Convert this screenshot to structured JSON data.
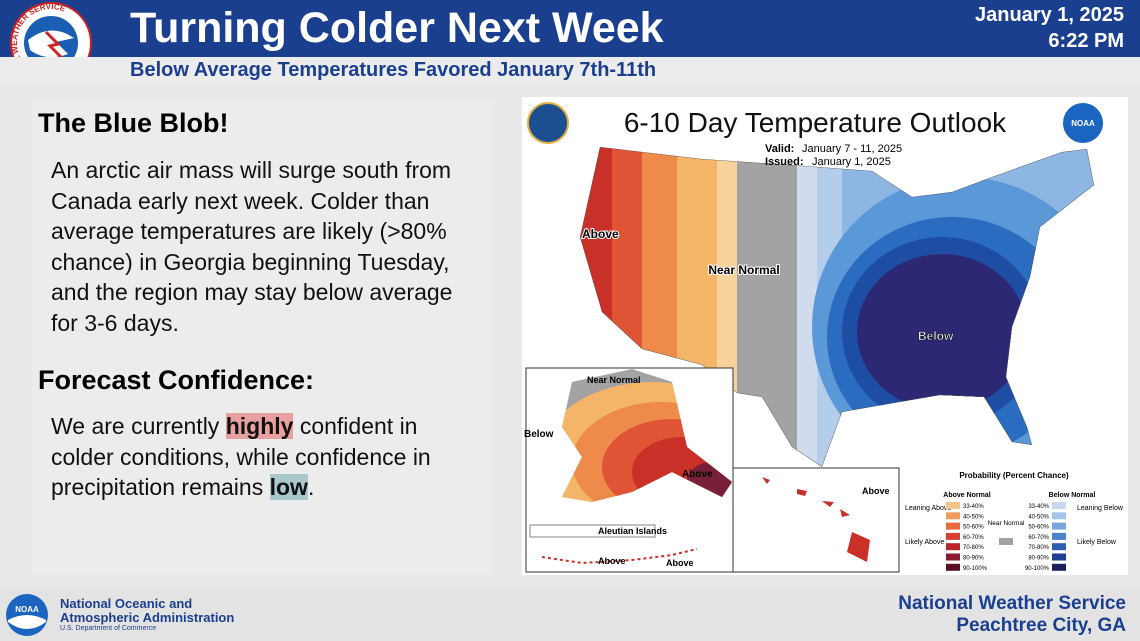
{
  "header": {
    "logo_text": "NATIONAL WEATHER SERVICE",
    "title": "Turning Colder Next Week",
    "subtitle": "Below Average Temperatures Favored January 7th-11th",
    "date": "January 1, 2025",
    "time": "6:22 PM"
  },
  "summary": {
    "heading": "The Blue Blob!",
    "text": "An arctic air mass will surge south from Canada early next week. Colder than average temperatures are likely (>80% chance) in Georgia beginning Tuesday, and the region may stay below average for 3-6 days."
  },
  "confidence": {
    "heading": "Forecast Confidence:",
    "segments": [
      "We are currently ",
      "highly",
      " confident in colder conditions, while confidence in precipitation remains ",
      "low",
      "."
    ]
  },
  "map": {
    "title": "6-10 Day Temperature Outlook",
    "valid_label": "Valid:",
    "valid": "January 7 - 11, 2025",
    "issued_label": "Issued:",
    "issued": "January 1, 2025",
    "labels": {
      "above": "Above",
      "near": "Near Normal",
      "below": "Below"
    },
    "alaska": {
      "near": "Near Normal",
      "below": "Below",
      "above": "Above",
      "aleutian": "Aleutian Islands",
      "above_2": "Above",
      "above_3": "Above"
    },
    "hawaii": {
      "above": "Above"
    },
    "legend": {
      "title": "Probability (Percent Chance)",
      "above_header": "Above Normal",
      "below_header": "Below Normal",
      "near": "Near Normal",
      "leaning_above": "Leaning Above",
      "likely_above": "Likely Above",
      "leaning_below": "Leaning Below",
      "likely_below": "Likely Below",
      "ranges": [
        "33-40%",
        "40-50%",
        "50-60%",
        "60-70%",
        "70-80%",
        "80-90%",
        "90-100%"
      ]
    },
    "noaa_logo": "NOAA"
  },
  "footer": {
    "logo": "NOAA",
    "agency": "National Oceanic and Atmospheric Administration",
    "department": "U.S. Department of Commerce",
    "office": "National Weather Service",
    "location": "Peachtree City, GA"
  }
}
